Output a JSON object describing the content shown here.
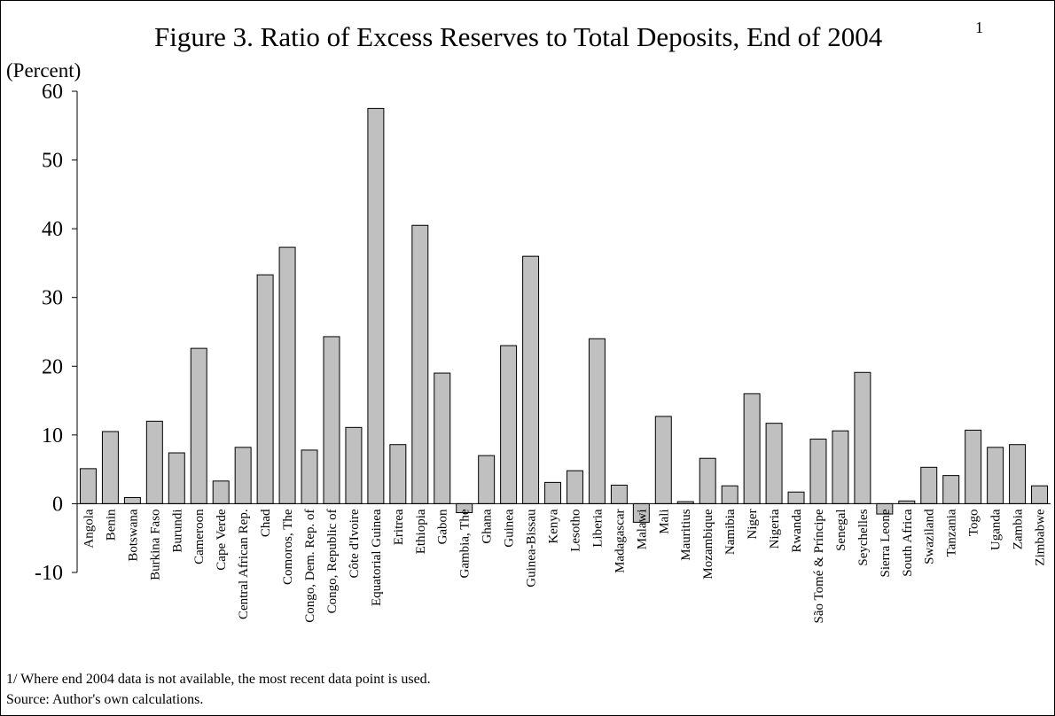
{
  "chart_data": {
    "type": "bar",
    "title": "Figure 3. Ratio of Excess Reserves to Total Deposits, End of 2004",
    "title_superscript": "1",
    "unit_label": "(Percent)",
    "ylim": [
      -10,
      60
    ],
    "yticks": [
      -10,
      0,
      10,
      20,
      30,
      40,
      50,
      60
    ],
    "grid": false,
    "bar_color": "#c0c0c0",
    "categories": [
      "Angola",
      "Benin",
      "Botswana",
      "Burkina Faso",
      "Burundi",
      "Cameroon",
      "Cape Verde",
      "Central African Rep.",
      "Chad",
      "Comoros, The",
      "Congo, Dem. Rep. of",
      "Congo, Republic of",
      "Côte d'Ivoire",
      "Equatorial Guinea",
      "Eritrea",
      "Ethiopia",
      "Gabon",
      "Gambia, The",
      "Ghana",
      "Guinea",
      "Guinea-Bissau",
      "Kenya",
      "Lesotho",
      "Liberia",
      "Madagascar",
      "Malawi",
      "Mali",
      "Mauritius",
      "Mozambique",
      "Namibia",
      "Niger",
      "Nigeria",
      "Rwanda",
      "São Tomé & Príncipe",
      "Senegal",
      "Seychelles",
      "Sierra Leone",
      "South Africa",
      "Swaziland",
      "Tanzania",
      "Togo",
      "Uganda",
      "Zambia",
      "Zimbabwe"
    ],
    "values": [
      5.1,
      10.5,
      0.9,
      12.0,
      7.4,
      22.6,
      3.3,
      8.2,
      33.3,
      37.3,
      7.8,
      24.3,
      11.1,
      57.5,
      8.6,
      40.5,
      19.0,
      -1.3,
      7.0,
      23.0,
      36.0,
      3.1,
      4.8,
      24.0,
      2.7,
      -2.7,
      12.7,
      0.3,
      6.6,
      2.6,
      16.0,
      11.7,
      1.7,
      9.4,
      10.6,
      19.1,
      -1.5,
      0.4,
      5.3,
      4.1,
      10.7,
      8.2,
      8.6,
      2.6
    ]
  },
  "footnote": "1/ Where end 2004 data is not available, the most recent data point is used.",
  "source": "Source: Author's own calculations."
}
